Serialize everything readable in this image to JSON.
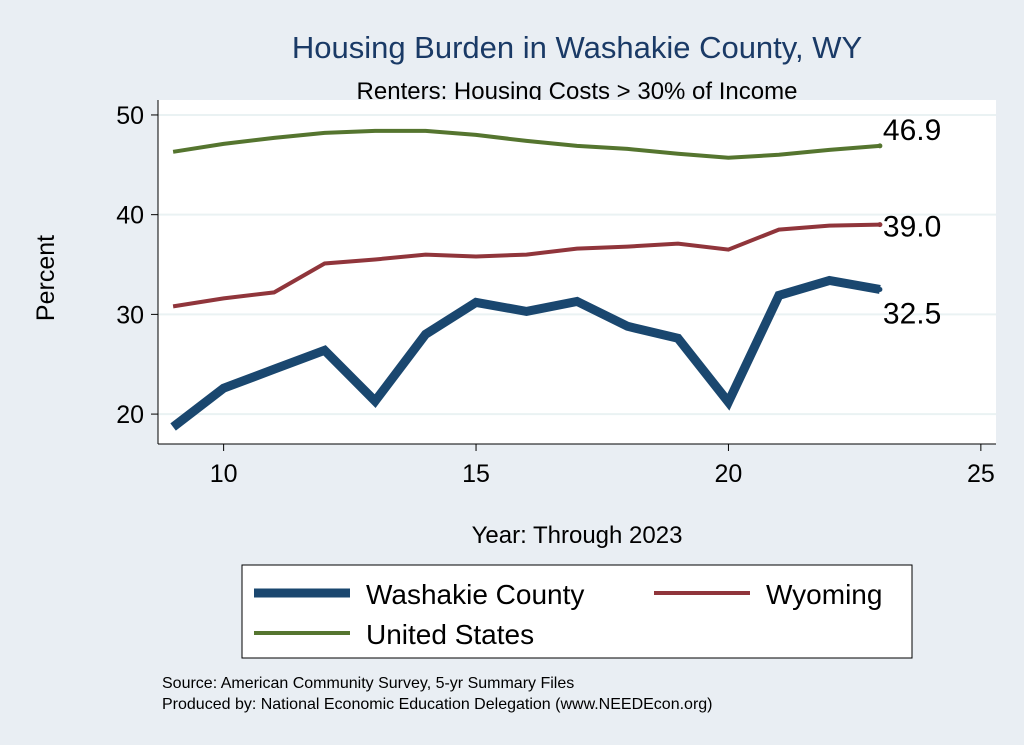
{
  "chart_data": {
    "type": "line",
    "title": "Housing Burden in Washakie County, WY",
    "subtitle": "Renters: Housing Costs > 30% of Income",
    "xlabel": "Year: Through 2023",
    "ylabel": "Percent",
    "xlim": [
      8.7,
      25.3
    ],
    "ylim": [
      17.0,
      51.5
    ],
    "x_ticks": [
      10,
      15,
      20,
      25
    ],
    "y_ticks": [
      20,
      30,
      40,
      50
    ],
    "grid": true,
    "legend_position": "bottom",
    "x": [
      9,
      10,
      11,
      12,
      13,
      14,
      15,
      16,
      17,
      18,
      19,
      20,
      21,
      22,
      23
    ],
    "series": [
      {
        "name": "Washakie County",
        "color": "#1a476f",
        "values": [
          18.7,
          22.6,
          24.5,
          26.4,
          21.3,
          28.0,
          31.2,
          30.3,
          31.3,
          28.8,
          27.6,
          21.2,
          31.9,
          33.4,
          32.5
        ],
        "end_label": "32.5"
      },
      {
        "name": "Wyoming",
        "color": "#90353b",
        "values": [
          30.8,
          31.6,
          32.2,
          35.1,
          35.5,
          36.0,
          35.8,
          36.0,
          36.6,
          36.8,
          37.1,
          36.5,
          38.5,
          38.9,
          39.0
        ],
        "end_label": "39.0"
      },
      {
        "name": "United States",
        "color": "#55752f",
        "values": [
          46.3,
          47.1,
          47.7,
          48.2,
          48.4,
          48.4,
          48.0,
          47.4,
          46.9,
          46.6,
          46.1,
          45.7,
          46.0,
          46.5,
          46.9
        ],
        "end_label": "46.9"
      }
    ],
    "source": "Source: American Community Survey, 5-yr Summary Files",
    "produced_by": "Produced by: National Economic Education Delegation (www.NEEDEcon.org)"
  }
}
